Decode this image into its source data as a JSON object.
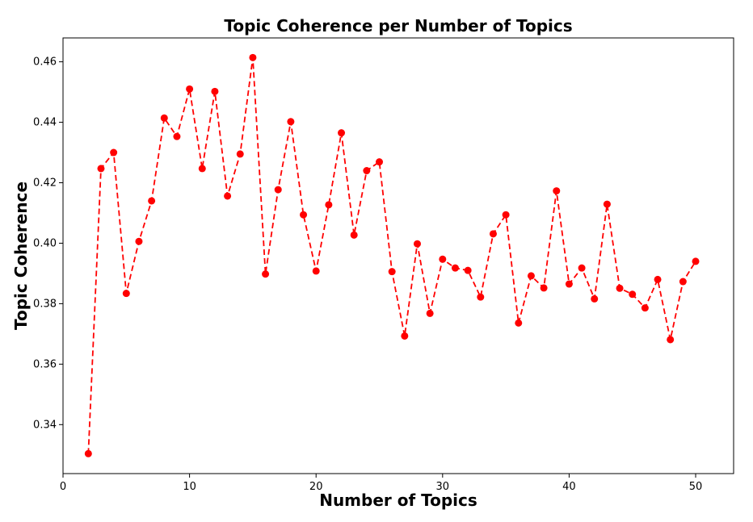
{
  "chart_data": {
    "type": "line",
    "title": "Topic Coherence per Number of Topics",
    "xlabel": "Number of Topics",
    "ylabel": "Topic Coherence",
    "xlim": [
      0,
      53
    ],
    "ylim": [
      0.3238,
      0.4679
    ],
    "x_ticks": [
      0,
      10,
      20,
      30,
      40,
      50
    ],
    "y_ticks": [
      0.34,
      0.36,
      0.38,
      0.4,
      0.42,
      0.44,
      0.46
    ],
    "y_tick_labels": [
      "0.34",
      "0.36",
      "0.38",
      "0.40",
      "0.42",
      "0.44",
      "0.46"
    ],
    "line_style": "dashed",
    "marker": "circle",
    "grid": false,
    "series": [
      {
        "color": "#ff0000",
        "x": [
          2,
          3,
          4,
          5,
          6,
          7,
          8,
          9,
          10,
          11,
          12,
          13,
          14,
          15,
          16,
          17,
          18,
          19,
          20,
          21,
          22,
          23,
          24,
          25,
          26,
          27,
          28,
          29,
          30,
          31,
          32,
          33,
          34,
          35,
          36,
          37,
          38,
          39,
          40,
          41,
          42,
          43,
          44,
          45,
          46,
          47,
          48,
          49,
          50
        ],
        "values": [
          0.3304,
          0.4247,
          0.43,
          0.3834,
          0.4006,
          0.414,
          0.4414,
          0.4353,
          0.451,
          0.4247,
          0.4502,
          0.4156,
          0.4295,
          0.4614,
          0.3898,
          0.4177,
          0.4402,
          0.4094,
          0.3908,
          0.4127,
          0.4365,
          0.4027,
          0.424,
          0.4269,
          0.3906,
          0.3693,
          0.3998,
          0.3768,
          0.3947,
          0.3918,
          0.391,
          0.3822,
          0.4031,
          0.4094,
          0.3736,
          0.3892,
          0.3852,
          0.4173,
          0.3865,
          0.3918,
          0.3816,
          0.4129,
          0.3851,
          0.3831,
          0.3786,
          0.388,
          0.3681,
          0.3873,
          0.394
        ]
      }
    ]
  }
}
